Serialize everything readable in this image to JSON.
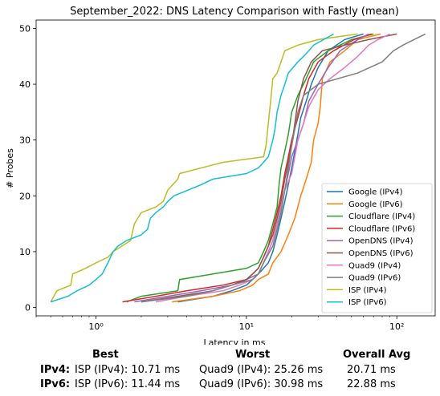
{
  "chart_data": {
    "type": "line",
    "title": "September_2022: DNS Latency Comparison with Fastly (mean)",
    "xlabel": "Latency in ms",
    "ylabel": "# Probes",
    "xscale": "log",
    "xlim": [
      0.4,
      180
    ],
    "ylim": [
      -1.5,
      51.5
    ],
    "xticks": [
      {
        "v": 1,
        "label": "10⁰"
      },
      {
        "v": 10,
        "label": "10¹"
      },
      {
        "v": 100,
        "label": "10²"
      }
    ],
    "yticks": [
      0,
      10,
      20,
      30,
      40,
      50
    ],
    "grid": false,
    "legend_position": "lower-right",
    "series": [
      {
        "name": "Google (IPv4)",
        "color": "#1f77b4",
        "points": [
          [
            3.5,
            1
          ],
          [
            6,
            2
          ],
          [
            8,
            3
          ],
          [
            10,
            4
          ],
          [
            11,
            5
          ],
          [
            12,
            6
          ],
          [
            13,
            7
          ],
          [
            14,
            8
          ],
          [
            15,
            10
          ],
          [
            16,
            13
          ],
          [
            17,
            16
          ],
          [
            18,
            19
          ],
          [
            19,
            22
          ],
          [
            20,
            25
          ],
          [
            21,
            28
          ],
          [
            22,
            31
          ],
          [
            23,
            34
          ],
          [
            25,
            37
          ],
          [
            27,
            40
          ],
          [
            30,
            43
          ],
          [
            35,
            46
          ],
          [
            45,
            48
          ],
          [
            60,
            49
          ]
        ]
      },
      {
        "name": "Google (IPv6)",
        "color": "#ff7f0e",
        "points": [
          [
            3.2,
            1
          ],
          [
            6,
            2
          ],
          [
            9,
            3
          ],
          [
            11,
            4
          ],
          [
            12,
            5
          ],
          [
            14,
            6
          ],
          [
            15,
            8
          ],
          [
            17,
            10
          ],
          [
            19,
            13
          ],
          [
            21,
            16
          ],
          [
            23,
            20
          ],
          [
            25,
            23
          ],
          [
            27,
            26
          ],
          [
            28,
            30
          ],
          [
            30,
            33
          ],
          [
            31,
            36
          ],
          [
            32,
            41
          ],
          [
            36,
            44
          ],
          [
            45,
            46
          ],
          [
            55,
            48
          ],
          [
            78,
            49
          ]
        ]
      },
      {
        "name": "Cloudflare (IPv4)",
        "color": "#2ca02c",
        "points": [
          [
            1.6,
            1
          ],
          [
            2,
            2
          ],
          [
            3.5,
            3
          ],
          [
            3.6,
            5
          ],
          [
            6,
            6
          ],
          [
            10,
            7
          ],
          [
            12,
            8
          ],
          [
            13,
            10
          ],
          [
            14,
            12
          ],
          [
            15,
            15
          ],
          [
            16,
            18
          ],
          [
            16.5,
            22
          ],
          [
            17,
            25
          ],
          [
            18,
            28
          ],
          [
            19,
            31
          ],
          [
            20,
            35
          ],
          [
            22,
            38
          ],
          [
            25,
            41
          ],
          [
            28,
            44
          ],
          [
            35,
            46
          ],
          [
            50,
            48
          ],
          [
            70,
            49
          ]
        ]
      },
      {
        "name": "Cloudflare (IPv6)",
        "color": "#d62728",
        "points": [
          [
            1.5,
            1
          ],
          [
            2.5,
            2
          ],
          [
            4,
            3
          ],
          [
            7,
            4
          ],
          [
            10,
            5
          ],
          [
            11,
            6
          ],
          [
            12,
            7
          ],
          [
            13,
            9
          ],
          [
            14,
            11
          ],
          [
            15,
            14
          ],
          [
            16,
            17
          ],
          [
            17,
            20
          ],
          [
            18,
            24
          ],
          [
            19,
            27
          ],
          [
            20,
            30
          ],
          [
            22,
            34
          ],
          [
            24,
            38
          ],
          [
            26,
            41
          ],
          [
            30,
            44
          ],
          [
            38,
            46
          ],
          [
            52,
            48
          ],
          [
            68,
            49
          ]
        ]
      },
      {
        "name": "OpenDNS (IPv4)",
        "color": "#9467bd",
        "points": [
          [
            1.8,
            1
          ],
          [
            3,
            2
          ],
          [
            5,
            3
          ],
          [
            8,
            4
          ],
          [
            10,
            5
          ],
          [
            12,
            6
          ],
          [
            13,
            8
          ],
          [
            14,
            10
          ],
          [
            15,
            12
          ],
          [
            16,
            15
          ],
          [
            17,
            18
          ],
          [
            18,
            21
          ],
          [
            19,
            24
          ],
          [
            20,
            27
          ],
          [
            22,
            30
          ],
          [
            24,
            33
          ],
          [
            26,
            37
          ],
          [
            30,
            40
          ],
          [
            35,
            43
          ],
          [
            42,
            46
          ],
          [
            55,
            48
          ],
          [
            65,
            49
          ]
        ]
      },
      {
        "name": "OpenDNS (IPv6)",
        "color": "#8c564b",
        "points": [
          [
            2,
            1
          ],
          [
            3.5,
            2
          ],
          [
            6,
            3
          ],
          [
            8,
            4
          ],
          [
            10,
            5
          ],
          [
            11,
            6
          ],
          [
            12,
            7
          ],
          [
            13,
            9
          ],
          [
            14,
            11
          ],
          [
            15,
            13
          ],
          [
            16,
            16
          ],
          [
            17,
            19
          ],
          [
            18,
            23
          ],
          [
            19,
            26
          ],
          [
            20,
            29
          ],
          [
            21,
            33
          ],
          [
            22,
            37
          ],
          [
            24,
            41
          ],
          [
            27,
            44
          ],
          [
            32,
            46
          ],
          [
            45,
            47
          ],
          [
            65,
            48
          ],
          [
            100,
            49
          ]
        ]
      },
      {
        "name": "Quad9 (IPv4)",
        "color": "#e377c2",
        "points": [
          [
            2.5,
            1
          ],
          [
            4,
            2
          ],
          [
            7,
            3
          ],
          [
            9,
            4
          ],
          [
            11,
            5
          ],
          [
            12,
            6
          ],
          [
            13,
            8
          ],
          [
            14,
            10
          ],
          [
            15,
            12
          ],
          [
            16,
            15
          ],
          [
            17,
            18
          ],
          [
            18,
            21
          ],
          [
            20,
            24
          ],
          [
            21,
            27
          ],
          [
            22,
            30
          ],
          [
            24,
            33
          ],
          [
            26,
            36
          ],
          [
            30,
            39
          ],
          [
            36,
            41
          ],
          [
            45,
            43
          ],
          [
            55,
            45
          ],
          [
            65,
            47
          ],
          [
            75,
            48
          ],
          [
            90,
            49
          ]
        ]
      },
      {
        "name": "Quad9 (IPv6)",
        "color": "#7f7f7f",
        "points": [
          [
            2,
            1
          ],
          [
            4,
            2
          ],
          [
            6,
            3
          ],
          [
            8,
            4
          ],
          [
            11,
            5
          ],
          [
            12,
            6
          ],
          [
            13,
            8
          ],
          [
            15,
            11
          ],
          [
            16,
            14
          ],
          [
            17,
            17
          ],
          [
            18,
            21
          ],
          [
            19,
            25
          ],
          [
            20,
            29
          ],
          [
            21,
            32
          ],
          [
            22,
            35
          ],
          [
            24,
            38
          ],
          [
            30,
            40
          ],
          [
            55,
            42
          ],
          [
            80,
            44
          ],
          [
            95,
            46
          ],
          [
            110,
            47
          ],
          [
            130,
            48
          ],
          [
            155,
            49
          ]
        ]
      },
      {
        "name": "ISP (IPv4)",
        "color": "#bcbd22",
        "points": [
          [
            0.5,
            1
          ],
          [
            0.55,
            3
          ],
          [
            0.68,
            4
          ],
          [
            0.7,
            6
          ],
          [
            0.85,
            7
          ],
          [
            1,
            8
          ],
          [
            1.2,
            9
          ],
          [
            1.3,
            10
          ],
          [
            1.7,
            12
          ],
          [
            1.8,
            15
          ],
          [
            2,
            17
          ],
          [
            2.5,
            18
          ],
          [
            2.8,
            19
          ],
          [
            3,
            21
          ],
          [
            3.5,
            23
          ],
          [
            3.6,
            24
          ],
          [
            5,
            25
          ],
          [
            7,
            26
          ],
          [
            13,
            27
          ],
          [
            13.5,
            29
          ],
          [
            14,
            33
          ],
          [
            14.5,
            37
          ],
          [
            15,
            41
          ],
          [
            16,
            42
          ],
          [
            17,
            44
          ],
          [
            18,
            46
          ],
          [
            22,
            47
          ],
          [
            30,
            48
          ],
          [
            55,
            49
          ]
        ]
      },
      {
        "name": "ISP (IPv6)",
        "color": "#17becf",
        "points": [
          [
            0.5,
            1
          ],
          [
            0.65,
            2
          ],
          [
            0.75,
            3
          ],
          [
            0.9,
            4
          ],
          [
            1,
            5
          ],
          [
            1.1,
            6
          ],
          [
            1.2,
            8
          ],
          [
            1.3,
            10
          ],
          [
            1.4,
            11
          ],
          [
            1.6,
            12
          ],
          [
            2,
            13
          ],
          [
            2.2,
            14
          ],
          [
            2.3,
            16
          ],
          [
            2.5,
            17
          ],
          [
            2.8,
            18
          ],
          [
            3,
            19
          ],
          [
            3.3,
            20
          ],
          [
            5,
            22
          ],
          [
            6,
            23
          ],
          [
            10,
            24
          ],
          [
            12,
            25
          ],
          [
            13,
            26
          ],
          [
            14,
            27
          ],
          [
            15,
            30
          ],
          [
            15.5,
            32
          ],
          [
            16,
            35
          ],
          [
            17,
            38
          ],
          [
            18,
            40
          ],
          [
            19,
            42
          ],
          [
            22,
            44
          ],
          [
            24,
            45
          ],
          [
            26,
            46
          ],
          [
            28,
            47
          ],
          [
            38,
            49
          ]
        ]
      }
    ]
  },
  "summary": {
    "headers": {
      "best": "Best",
      "worst": "Worst",
      "avg": "Overall Avg"
    },
    "rows": [
      {
        "label": "IPv4:",
        "best": "ISP (IPv4): 10.71 ms",
        "worst": "Quad9 (IPv4): 25.26 ms",
        "avg": "20.71 ms"
      },
      {
        "label": "IPv6:",
        "best": "ISP (IPv6): 11.44 ms",
        "worst": "Quad9 (IPv6): 30.98 ms",
        "avg": "22.88 ms"
      }
    ]
  }
}
